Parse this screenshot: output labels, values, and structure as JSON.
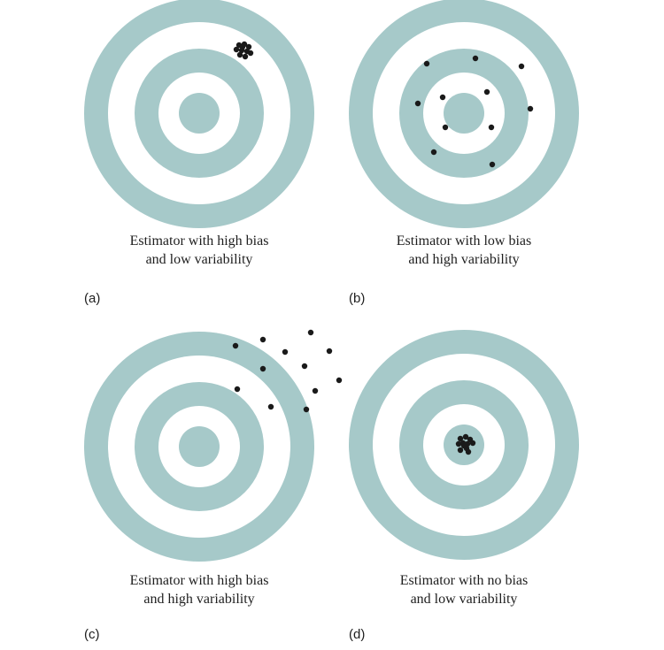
{
  "colors": {
    "ring": "#a6c9c9",
    "background": "#ffffff",
    "dot": "#1a1a1a",
    "text": "#1e1e1e"
  },
  "panels": [
    {
      "id": "a",
      "label": "(a)",
      "caption_line1": "Estimator with high bias",
      "caption_line2": "and low variability"
    },
    {
      "id": "b",
      "label": "(b)",
      "caption_line1": "Estimator with low bias",
      "caption_line2": "and high variability"
    },
    {
      "id": "c",
      "label": "(c)",
      "caption_line1": "Estimator with high bias",
      "caption_line2": "and high variability"
    },
    {
      "id": "d",
      "label": "(d)",
      "caption_line1": "Estimator with no bias",
      "caption_line2": "and low variability"
    }
  ]
}
